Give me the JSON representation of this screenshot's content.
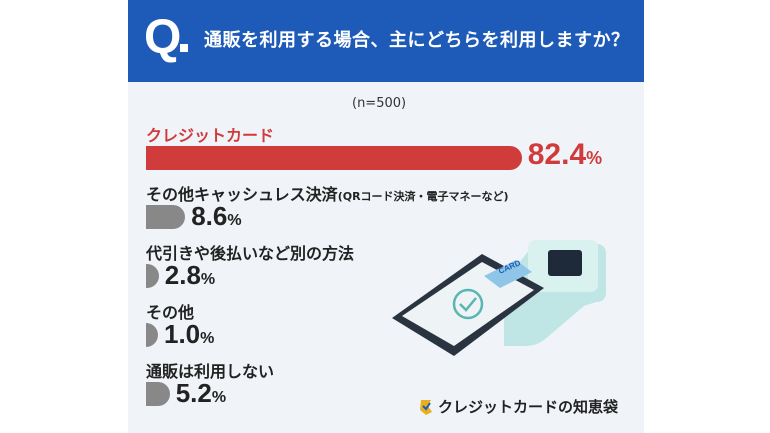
{
  "question": {
    "mark": "Q",
    "text": "通販を利用する場合、主にどちらを利用しますか？"
  },
  "sample_note": "(n=500)",
  "brand": {
    "name": "クレジットカードの知恵袋"
  },
  "colors": {
    "header": "#1e5bb8",
    "accent": "#d03b3b",
    "bar": "#888888",
    "background": "#f0f4f8"
  },
  "chart_data": {
    "type": "bar",
    "orientation": "horizontal",
    "title": "通販を利用する場合、主にどちらを利用しますか？",
    "unit": "%",
    "categories": [
      {
        "label": "クレジットカード",
        "sub": ""
      },
      {
        "label": "その他キャッシュレス決済",
        "sub": "(QRコード決済・電子マネーなど)"
      },
      {
        "label": "代引きや後払いなど別の方法",
        "sub": ""
      },
      {
        "label": "その他",
        "sub": ""
      },
      {
        "label": "通販は利用しない",
        "sub": ""
      }
    ],
    "values": [
      82.4,
      8.6,
      2.8,
      1.0,
      5.2
    ],
    "value_labels": [
      "82.4",
      "8.6",
      "2.8",
      "1.0",
      "5.2"
    ],
    "highlight_index": 0,
    "xlim": [
      0,
      100
    ],
    "grid": false
  }
}
